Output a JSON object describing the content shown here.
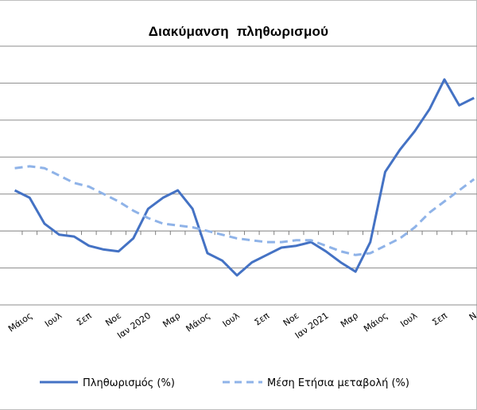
{
  "chart_data": {
    "type": "line",
    "title": "Διακύμανση  πληθωρισμού",
    "xlabel": "",
    "ylabel": "",
    "grid": true,
    "legend_position": "bottom",
    "x_tick_labels": [
      "Μάιος",
      "Ιουλ",
      "Σεπ",
      "Νοε",
      "Ιαν 2020",
      "Μαρ",
      "Μάιος",
      "Ιουλ",
      "Σεπ",
      "Νοε",
      "Ιαν 2021",
      "Μαρ",
      "Μάιος",
      "Ιουλ",
      "Σεπ",
      "Ν"
    ],
    "x_tick_indices": [
      1,
      3,
      5,
      7,
      9,
      11,
      13,
      15,
      17,
      19,
      21,
      23,
      25,
      27,
      29,
      31
    ],
    "x_index_range": [
      0,
      32
    ],
    "series": [
      {
        "name": "Πληθωρισμός (%)",
        "color": "#4472c4",
        "style": "solid",
        "values": [
          1.1,
          0.9,
          0.2,
          -0.1,
          -0.15,
          -0.4,
          -0.5,
          -0.55,
          -0.2,
          0.6,
          0.9,
          1.1,
          0.6,
          -0.6,
          -0.8,
          -1.2,
          -0.85,
          -0.65,
          -0.45,
          -0.4,
          -0.3,
          -0.55,
          -0.85,
          -1.1,
          -0.3,
          1.6,
          2.2,
          2.7,
          3.3,
          4.1,
          3.4,
          3.6
        ]
      },
      {
        "name": "Μέση Ετήσια μεταβολή (%)",
        "color": "#8fb3e8",
        "style": "dashed",
        "values": [
          1.7,
          1.75,
          1.7,
          1.5,
          1.3,
          1.2,
          1.0,
          0.8,
          0.55,
          0.35,
          0.2,
          0.15,
          0.1,
          0.0,
          -0.1,
          -0.2,
          -0.25,
          -0.3,
          -0.3,
          -0.25,
          -0.25,
          -0.4,
          -0.55,
          -0.65,
          -0.6,
          -0.4,
          -0.2,
          0.1,
          0.5,
          0.8,
          1.1,
          1.4
        ]
      }
    ],
    "ylim": [
      -2,
      5
    ],
    "y_gridlines": [
      -2,
      -1,
      0,
      1,
      2,
      3,
      4,
      5
    ]
  }
}
